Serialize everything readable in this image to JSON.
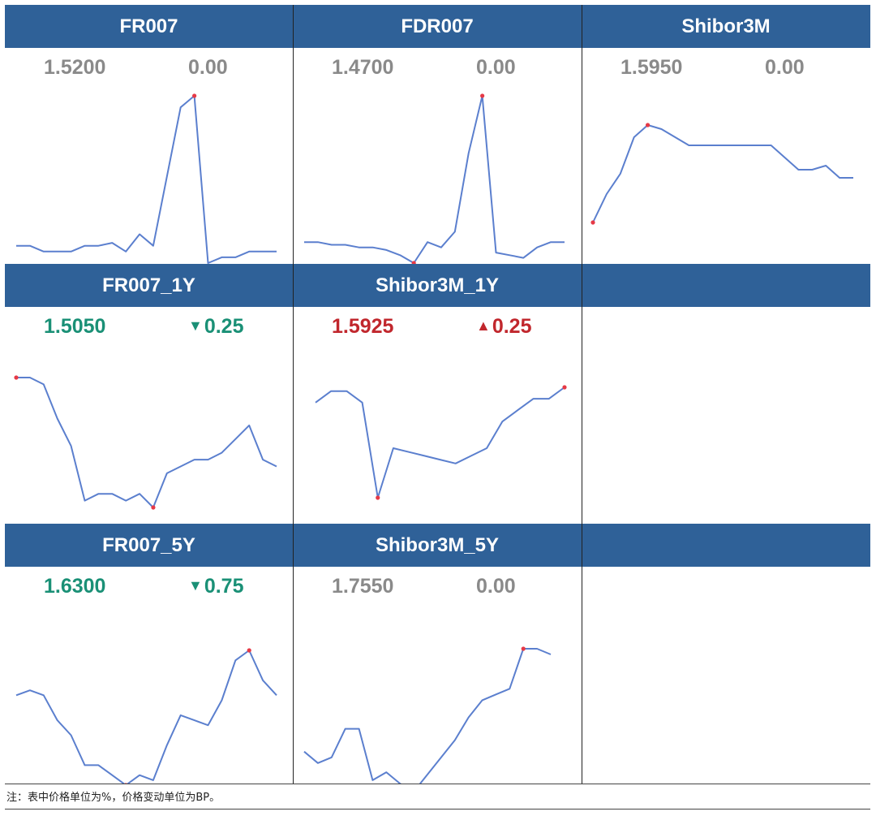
{
  "note": "注：表中价格单位为%，价格变动单位为BP。",
  "colors": {
    "header": "#2f6198",
    "line": "#5b7fce",
    "point": "#e63946",
    "neutral": "#8a8a8a",
    "down": "#1a9076",
    "up": "#c1272d"
  },
  "chart_data": [
    {
      "type": "line",
      "title": "FR007",
      "price": "1.5200",
      "change": "0.00",
      "trend": "neutral",
      "values": [
        1.5,
        1.5,
        1.49,
        1.49,
        1.49,
        1.5,
        1.5,
        1.505,
        1.49,
        1.52,
        1.5,
        1.62,
        1.74,
        1.76,
        1.47,
        1.48,
        1.48,
        1.49,
        1.49,
        1.49
      ],
      "highlight": [
        13
      ]
    },
    {
      "type": "line",
      "title": "FDR007",
      "price": "1.4700",
      "change": "0.00",
      "trend": "neutral",
      "values": [
        1.48,
        1.48,
        1.475,
        1.475,
        1.47,
        1.47,
        1.465,
        1.455,
        1.44,
        1.48,
        1.47,
        1.5,
        1.65,
        1.76,
        1.46,
        1.455,
        1.45,
        1.47,
        1.48,
        1.48
      ],
      "highlight": [
        8,
        13
      ]
    },
    {
      "type": "line",
      "title": "Shibor3M",
      "price": "1.5950",
      "change": "0.00",
      "trend": "neutral",
      "values": [
        1.585,
        1.592,
        1.597,
        1.606,
        1.609,
        1.608,
        1.606,
        1.604,
        1.604,
        1.604,
        1.604,
        1.604,
        1.604,
        1.604,
        1.601,
        1.598,
        1.598,
        1.599,
        1.596,
        1.596
      ],
      "highlight": [
        0,
        4
      ]
    },
    {
      "type": "line",
      "title": "FR007_1Y",
      "price": "1.5050",
      "change": "0.25",
      "trend": "down",
      "values": [
        1.58,
        1.58,
        1.575,
        1.55,
        1.53,
        1.49,
        1.495,
        1.495,
        1.49,
        1.495,
        1.485,
        1.51,
        1.515,
        1.52,
        1.52,
        1.525,
        1.535,
        1.545,
        1.52,
        1.515
      ],
      "highlight": [
        0,
        10
      ]
    },
    {
      "type": "line",
      "title": "Shibor3M_1Y",
      "price": "1.5925",
      "change": "0.25",
      "trend": "up",
      "values": [
        1.57,
        1.585,
        1.585,
        1.57,
        1.445,
        1.51,
        1.505,
        1.5,
        1.495,
        1.49,
        1.5,
        1.51,
        1.545,
        1.56,
        1.575,
        1.575,
        1.59
      ],
      "highlight": [
        4,
        16
      ]
    },
    {
      "type": "line",
      "title": "FR007_5Y",
      "price": "1.6300",
      "change": "0.75",
      "trend": "down",
      "values": [
        1.68,
        1.685,
        1.68,
        1.655,
        1.64,
        1.61,
        1.61,
        1.6,
        1.59,
        1.6,
        1.595,
        1.63,
        1.66,
        1.655,
        1.65,
        1.675,
        1.715,
        1.725,
        1.695,
        1.68
      ],
      "highlight": [
        8,
        17
      ]
    },
    {
      "type": "line",
      "title": "Shibor3M_5Y",
      "price": "1.7550",
      "change": "0.00",
      "trend": "neutral",
      "values": [
        1.69,
        1.68,
        1.685,
        1.71,
        1.71,
        1.665,
        1.672,
        1.662,
        1.655,
        1.67,
        1.685,
        1.7,
        1.72,
        1.735,
        1.74,
        1.745,
        1.78,
        1.78,
        1.775
      ],
      "highlight": [
        8,
        16
      ]
    }
  ]
}
